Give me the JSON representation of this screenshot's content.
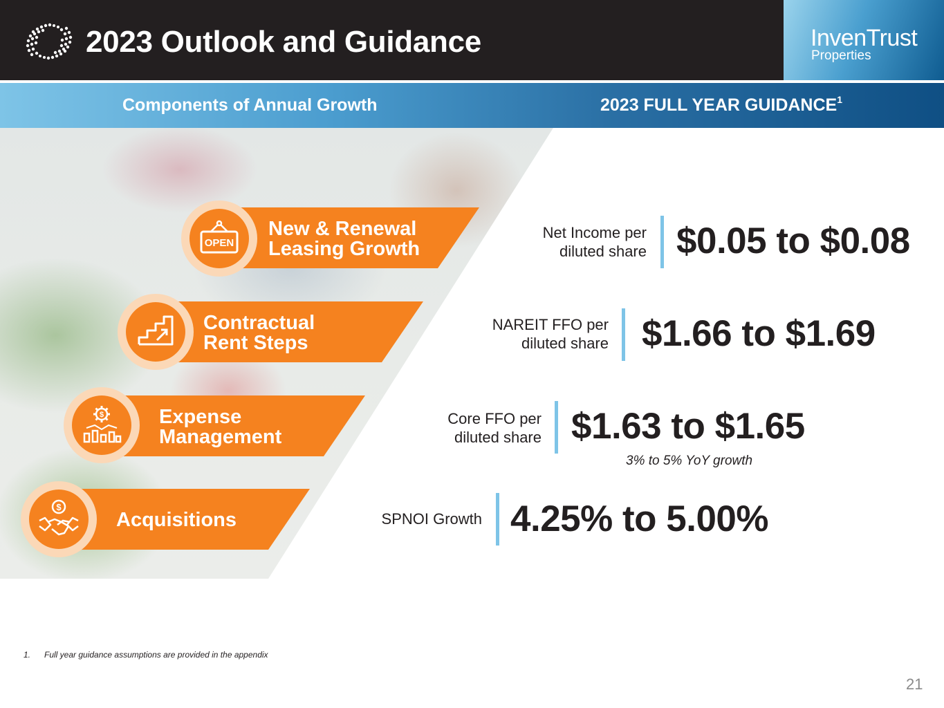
{
  "header": {
    "title": "2023 Outlook and Guidance",
    "brand_name": "InvenTrust",
    "brand_sub": "Properties"
  },
  "band": {
    "left_label": "Components of Annual Growth",
    "right_label": "2023 FULL YEAR GUIDANCE",
    "right_sup": "1"
  },
  "components": [
    {
      "line1": "New & Renewal",
      "line2": "Leasing Growth",
      "icon": "open-sign-icon",
      "icon_text": "OPEN"
    },
    {
      "line1": "Contractual",
      "line2": "Rent Steps",
      "icon": "stairs-arrow-icon"
    },
    {
      "line1": "Expense",
      "line2": "Management",
      "icon": "gear-dollar-chart-icon"
    },
    {
      "line1": "Acquisitions",
      "icon": "handshake-dollar-icon"
    }
  ],
  "guidance": [
    {
      "label_line1": "Net Income per",
      "label_line2": "diluted share",
      "value": "$0.05 to $0.08"
    },
    {
      "label_line1": "NAREIT FFO per",
      "label_line2": "diluted share",
      "value": "$1.66 to $1.69"
    },
    {
      "label_line1": "Core FFO per",
      "label_line2": "diluted share",
      "value": "$1.63 to $1.65",
      "note": "3% to 5% YoY growth"
    },
    {
      "label_line1": "SPNOI Growth",
      "value": "4.25% to 5.00%"
    }
  ],
  "footnote": {
    "number": "1.",
    "text": "Full year guidance assumptions are provided in the appendix"
  },
  "page_number": "21",
  "colors": {
    "orange": "#f5821f",
    "light_orange": "#fbd8b7",
    "dark": "#231f20",
    "accent_blue": "#7ec4e7"
  }
}
